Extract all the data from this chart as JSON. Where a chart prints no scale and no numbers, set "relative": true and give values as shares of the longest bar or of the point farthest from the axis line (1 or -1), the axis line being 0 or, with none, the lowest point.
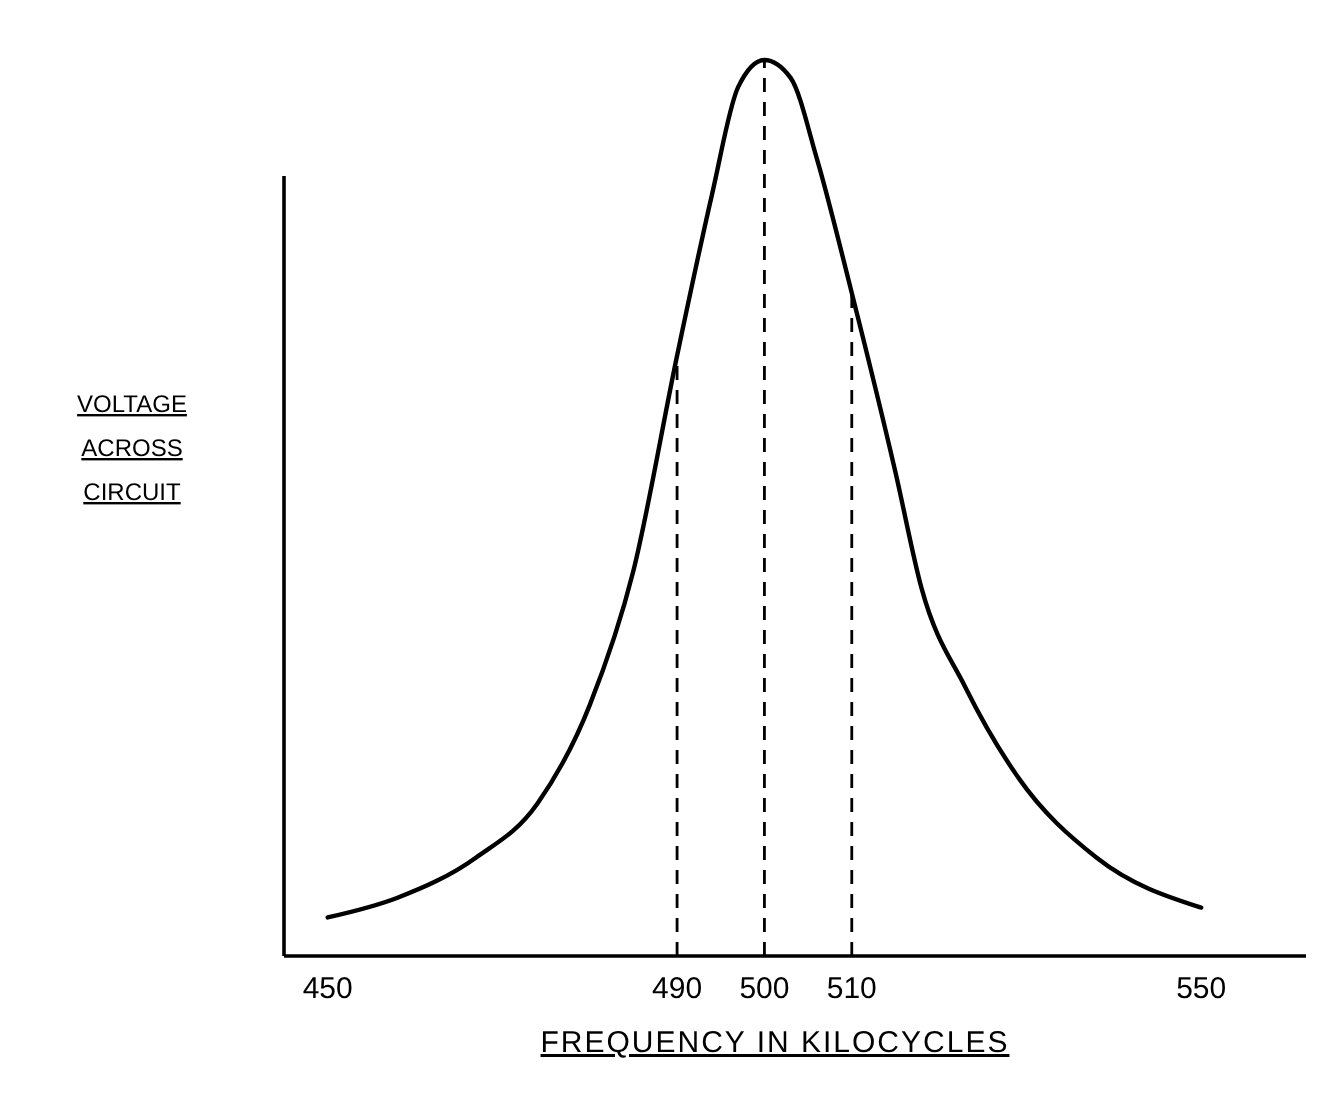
{
  "chart_data": {
    "type": "line",
    "relative": true,
    "xlabel": "FREQUENCY IN KILOCYCLES",
    "ylabel": "VOLTAGE ACROSS CIRCUIT",
    "x": [
      450,
      458,
      467,
      474,
      480,
      485,
      490,
      494,
      497,
      500,
      503,
      506,
      510,
      515,
      518,
      523,
      529,
      538,
      550
    ],
    "series": [
      {
        "color": "#000000",
        "values": [
          0.043,
          0.065,
          0.11,
          0.17,
          0.28,
          0.43,
          0.67,
          0.85,
          0.97,
          1,
          0.98,
          0.89,
          0.74,
          0.54,
          0.41,
          0.3,
          0.2,
          0.11,
          0.054
        ]
      }
    ],
    "xlim": [
      445,
      562
    ],
    "xticks": [
      450,
      490,
      500,
      510,
      550
    ],
    "tick_labels": "x",
    "grid": false,
    "marker": "none",
    "line_style": "solid",
    "ref_lines": [
      {
        "axis": "x",
        "value": 490,
        "line_style": "dashed"
      },
      {
        "axis": "x",
        "value": 500,
        "line_style": "dashed"
      },
      {
        "axis": "x",
        "value": 510,
        "line_style": "dashed"
      }
    ]
  }
}
